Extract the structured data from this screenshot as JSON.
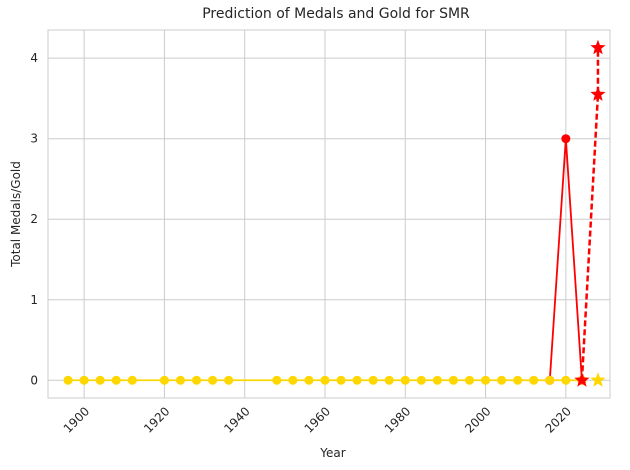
{
  "chart_data": {
    "type": "line",
    "title": "Prediction of Medals and Gold for SMR",
    "xlabel": "Year",
    "ylabel": "Total Medals/Gold",
    "xlim": [
      1891,
      2031
    ],
    "ylim": [
      -0.22,
      4.35
    ],
    "xticks": [
      1900,
      1920,
      1940,
      1960,
      1980,
      2000,
      2020
    ],
    "xtick_labels": [
      "1900",
      "1920",
      "1940",
      "1960",
      "1980",
      "2000",
      "2020"
    ],
    "yticks": [
      0,
      1,
      2,
      3,
      4
    ],
    "ytick_labels": [
      "0",
      "1",
      "2",
      "3",
      "4"
    ],
    "grid": true,
    "series": [
      {
        "role": "total-medals",
        "color": "#ff0000",
        "marker": "circle",
        "line": "solid",
        "points": [
          [
            2016,
            0
          ],
          [
            2020,
            3
          ],
          [
            2024,
            0
          ]
        ]
      },
      {
        "role": "gold-medals",
        "color": "#ffd700",
        "marker": "circle",
        "line": "solid",
        "points": [
          [
            1896,
            0
          ],
          [
            1900,
            0
          ],
          [
            1904,
            0
          ],
          [
            1908,
            0
          ],
          [
            1912,
            0
          ],
          [
            1920,
            0
          ],
          [
            1924,
            0
          ],
          [
            1928,
            0
          ],
          [
            1932,
            0
          ],
          [
            1936,
            0
          ],
          [
            1948,
            0
          ],
          [
            1952,
            0
          ],
          [
            1956,
            0
          ],
          [
            1960,
            0
          ],
          [
            1964,
            0
          ],
          [
            1968,
            0
          ],
          [
            1972,
            0
          ],
          [
            1976,
            0
          ],
          [
            1980,
            0
          ],
          [
            1984,
            0
          ],
          [
            1988,
            0
          ],
          [
            1992,
            0
          ],
          [
            1996,
            0
          ],
          [
            2000,
            0
          ],
          [
            2004,
            0
          ],
          [
            2008,
            0
          ],
          [
            2012,
            0
          ],
          [
            2016,
            0
          ],
          [
            2020,
            0
          ],
          [
            2024,
            0
          ]
        ]
      },
      {
        "role": "total-medals-prediction",
        "color": "#ff0000",
        "marker": "star",
        "line": "dashed",
        "points": [
          [
            2024,
            0
          ],
          [
            2028,
            3.55
          ],
          [
            2028,
            4.13
          ]
        ]
      },
      {
        "role": "gold-medals-prediction",
        "color": "#ffd700",
        "marker": "star",
        "line": "none",
        "points": [
          [
            2028,
            0
          ]
        ]
      }
    ]
  }
}
